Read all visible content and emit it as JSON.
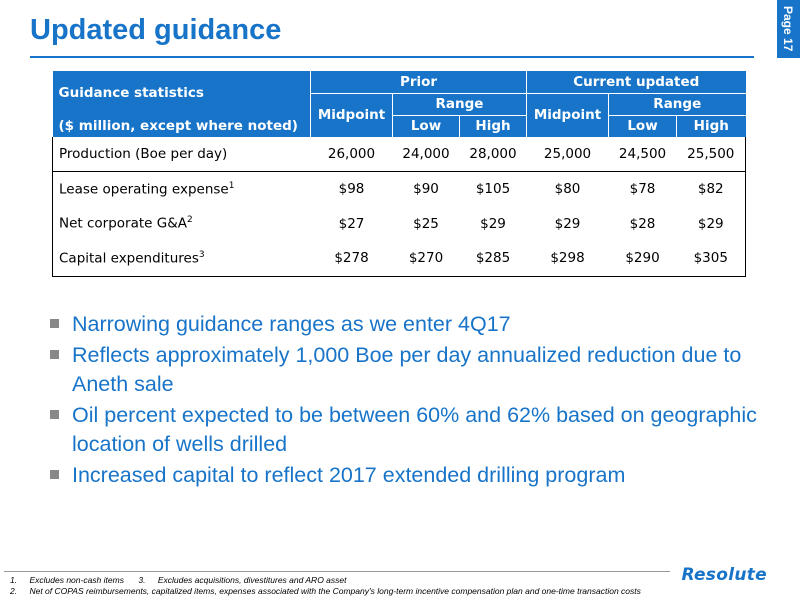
{
  "title": "Updated guidance",
  "page_label": "Page 17",
  "table": {
    "corner_label_1": "Guidance statistics",
    "corner_label_2": "($ million, except where noted)",
    "prior": "Prior",
    "current": "Current updated",
    "midpoint": "Midpoint",
    "range": "Range",
    "low": "Low",
    "high": "High",
    "rows": [
      {
        "label": "Production (Boe per day)",
        "sup": "",
        "values": [
          "26,000",
          "24,000",
          "28,000",
          "25,000",
          "24,500",
          "25,500"
        ]
      },
      {
        "label": "Lease operating expense",
        "sup": "1",
        "values": [
          "$98",
          "$90",
          "$105",
          "$80",
          "$78",
          "$82"
        ]
      },
      {
        "label": "Net corporate G&A",
        "sup": "2",
        "values": [
          "$27",
          "$25",
          "$29",
          "$29",
          "$28",
          "$29"
        ]
      },
      {
        "label": "Capital expenditures",
        "sup": "3",
        "values": [
          "$278",
          "$270",
          "$285",
          "$298",
          "$290",
          "$305"
        ]
      }
    ]
  },
  "bullets": [
    "Narrowing guidance ranges as we enter 4Q17",
    "Reflects approximately 1,000 Boe per day annualized reduction due to Aneth sale",
    "Oil percent expected to be between 60% and 62% based on geographic location of wells drilled",
    "Increased capital to reflect 2017 extended drilling program"
  ],
  "footnotes": {
    "n1": "1.",
    "t1": "Excludes non-cash items",
    "n3": "3.",
    "t3": "Excludes acquisitions, divestitures and ARO asset",
    "n2": "2.",
    "t2": "Net of COPAS reimbursements, capitalized items, expenses associated with the Company's long-term incentive compensation plan and one-time transaction costs"
  },
  "logo_text": "Resolute",
  "colors": {
    "brand_blue": "#1874c8",
    "bullet_gray": "#888888"
  }
}
